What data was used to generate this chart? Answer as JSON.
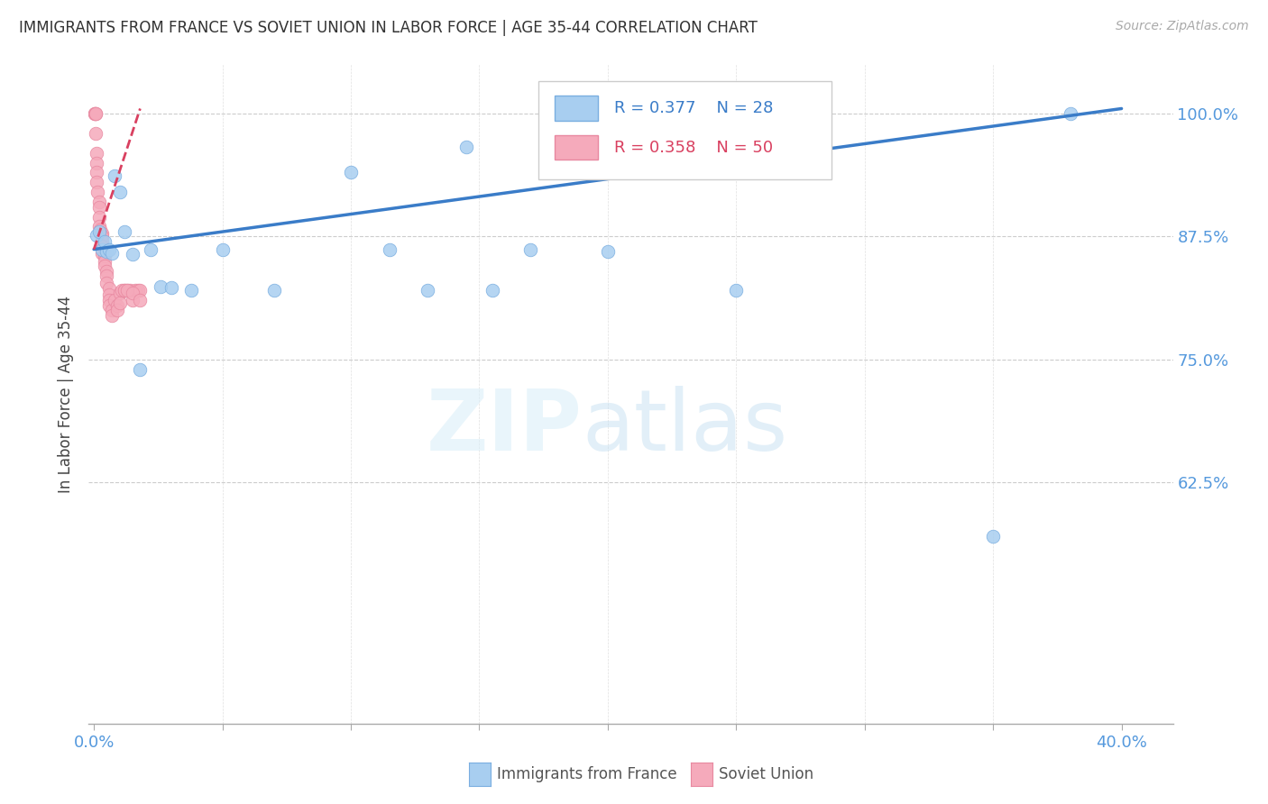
{
  "title": "IMMIGRANTS FROM FRANCE VS SOVIET UNION IN LABOR FORCE | AGE 35-44 CORRELATION CHART",
  "source": "Source: ZipAtlas.com",
  "ylabel": "In Labor Force | Age 35-44",
  "xlim": [
    -0.002,
    0.42
  ],
  "ylim": [
    0.38,
    1.05
  ],
  "color_france": "#a8cef0",
  "color_france_edge": "#7aaee0",
  "color_soviet": "#f5aabb",
  "color_soviet_edge": "#e888a0",
  "color_france_line": "#3a7cc8",
  "color_soviet_line": "#d94060",
  "yticks": [
    0.625,
    0.75,
    0.875,
    1.0
  ],
  "yticklabels": [
    "62.5%",
    "75.0%",
    "87.5%",
    "100.0%"
  ],
  "france_x": [
    0.001,
    0.002,
    0.003,
    0.004,
    0.005,
    0.006,
    0.007,
    0.008,
    0.01,
    0.012,
    0.015,
    0.018,
    0.022,
    0.026,
    0.03,
    0.038,
    0.05,
    0.07,
    0.1,
    0.115,
    0.13,
    0.145,
    0.155,
    0.17,
    0.2,
    0.25,
    0.35,
    0.38
  ],
  "france_y": [
    0.876,
    0.88,
    0.862,
    0.87,
    0.86,
    0.862,
    0.858,
    0.937,
    0.92,
    0.88,
    0.857,
    0.74,
    0.862,
    0.824,
    0.823,
    0.82,
    0.862,
    0.82,
    0.94,
    0.862,
    0.82,
    0.966,
    0.82,
    0.862,
    0.86,
    0.82,
    0.57,
    1.0
  ],
  "soviet_x": [
    0.0002,
    0.0003,
    0.0005,
    0.0005,
    0.0008,
    0.001,
    0.001,
    0.001,
    0.001,
    0.0015,
    0.002,
    0.002,
    0.002,
    0.002,
    0.0025,
    0.003,
    0.003,
    0.003,
    0.003,
    0.003,
    0.004,
    0.004,
    0.004,
    0.004,
    0.005,
    0.005,
    0.005,
    0.006,
    0.006,
    0.006,
    0.006,
    0.007,
    0.007,
    0.008,
    0.009,
    0.009,
    0.01,
    0.01,
    0.011,
    0.012,
    0.013,
    0.014,
    0.015,
    0.016,
    0.017,
    0.018,
    0.012,
    0.013,
    0.015,
    0.018
  ],
  "soviet_y": [
    1.0,
    1.0,
    1.0,
    1.0,
    0.98,
    0.96,
    0.95,
    0.94,
    0.93,
    0.92,
    0.91,
    0.905,
    0.895,
    0.885,
    0.882,
    0.878,
    0.875,
    0.87,
    0.865,
    0.858,
    0.858,
    0.855,
    0.85,
    0.845,
    0.84,
    0.835,
    0.828,
    0.822,
    0.816,
    0.81,
    0.805,
    0.8,
    0.795,
    0.81,
    0.805,
    0.8,
    0.818,
    0.808,
    0.82,
    0.82,
    0.82,
    0.82,
    0.81,
    0.82,
    0.82,
    0.82,
    0.82,
    0.82,
    0.818,
    0.81
  ],
  "france_trend_x": [
    0.0,
    0.4
  ],
  "france_trend_y": [
    0.862,
    1.005
  ],
  "soviet_trend_x": [
    0.0,
    0.018
  ],
  "soviet_trend_y": [
    0.862,
    1.005
  ]
}
